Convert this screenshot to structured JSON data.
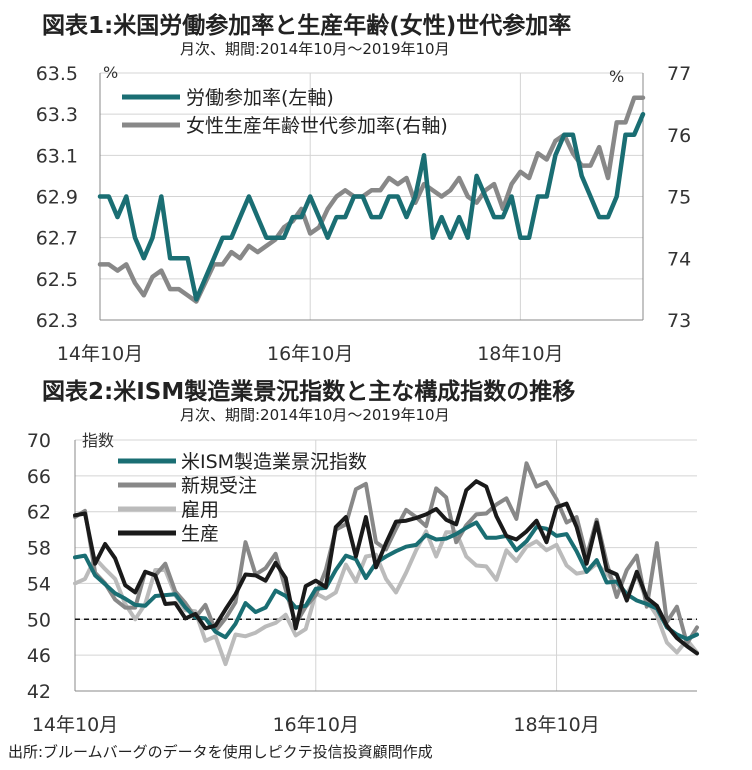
{
  "figure1": {
    "title": "図表1:米国労働参加率と生産年齢(女性)世代参加率",
    "subtitle": "月次、期間:2014年10月～2019年10月"
  },
  "figure2": {
    "title": "図表2:米ISM製造業景況指数と主な構成指数の推移",
    "subtitle": "月次、期間:2014年10月～2019年10月"
  },
  "source": "出所:ブルームバーグのデータを使用しピクテ投信投資顧問作成",
  "chart_data": [
    {
      "type": "line",
      "title": "図表1:米国労働参加率と生産年齢(女性)世代参加率",
      "subtitle": "月次、期間:2014年10月～2019年10月",
      "x_start": "2014-10",
      "x_end": "2019-10",
      "x_ticks": [
        "14年10月",
        "16年10月",
        "18年10月"
      ],
      "y_left": {
        "unit": "%",
        "range": [
          62.3,
          63.5
        ],
        "ticks": [
          "62.3",
          "62.5",
          "62.7",
          "62.9",
          "63.1",
          "63.3",
          "63.5"
        ]
      },
      "y_right": {
        "unit": "%",
        "range": [
          73,
          77
        ],
        "ticks": [
          "73",
          "74",
          "75",
          "76",
          "77"
        ]
      },
      "grid": true,
      "legend": "top-left",
      "series": [
        {
          "name": "労働参加率(左軸)",
          "axis": "left",
          "color": "#1a6e73",
          "values": [
            62.9,
            62.9,
            62.8,
            62.9,
            62.7,
            62.6,
            62.7,
            62.9,
            62.6,
            62.6,
            62.6,
            62.4,
            62.5,
            62.6,
            62.7,
            62.7,
            62.8,
            62.9,
            62.8,
            62.7,
            62.7,
            62.7,
            62.8,
            62.8,
            62.9,
            62.8,
            62.7,
            62.8,
            62.8,
            62.9,
            62.9,
            62.8,
            62.8,
            62.9,
            62.9,
            62.8,
            62.9,
            63.1,
            62.7,
            62.8,
            62.7,
            62.8,
            62.7,
            63.0,
            62.9,
            62.8,
            62.8,
            62.9,
            62.7,
            62.7,
            62.9,
            62.9,
            63.1,
            63.2,
            63.2,
            63.0,
            62.9,
            62.8,
            62.8,
            62.9,
            63.2,
            63.2,
            63.3
          ]
        },
        {
          "name": "女性生産年齢世代参加率(右軸)",
          "axis": "right",
          "color": "#888888",
          "values": [
            73.9,
            73.9,
            73.8,
            73.9,
            73.6,
            73.4,
            73.7,
            73.8,
            73.5,
            73.5,
            73.4,
            73.3,
            73.6,
            73.9,
            73.9,
            74.1,
            74.0,
            74.2,
            74.1,
            74.2,
            74.3,
            74.5,
            74.6,
            74.8,
            74.4,
            74.5,
            74.8,
            75.0,
            75.1,
            75.0,
            75.0,
            75.1,
            75.1,
            75.3,
            75.2,
            75.3,
            74.9,
            75.2,
            75.1,
            75.0,
            75.1,
            75.3,
            75.0,
            74.9,
            75.1,
            75.2,
            74.8,
            75.2,
            75.4,
            75.3,
            75.7,
            75.6,
            75.9,
            76.0,
            75.7,
            75.5,
            75.5,
            75.8,
            75.3,
            76.2,
            76.2,
            76.6,
            76.6
          ]
        }
      ]
    },
    {
      "type": "line",
      "title": "図表2:米ISM製造業景況指数と主な構成指数の推移",
      "subtitle": "月次、期間:2014年10月～2019年10月",
      "x_start": "2014-10",
      "x_end": "2019-10",
      "x_ticks": [
        "14年10月",
        "16年10月",
        "18年10月"
      ],
      "y": {
        "unit": "指数",
        "range": [
          42,
          70
        ],
        "ticks": [
          "42",
          "46",
          "50",
          "54",
          "58",
          "62",
          "66",
          "70"
        ]
      },
      "reference_line": 50,
      "grid": true,
      "legend": "top-left",
      "series": [
        {
          "name": "米ISM製造業景況指数",
          "color": "#1a6e73",
          "values": [
            56.9,
            57.1,
            54.9,
            53.9,
            52.9,
            52.3,
            51.6,
            51.5,
            52.6,
            52.7,
            52.8,
            51.3,
            50.2,
            50.1,
            48.6,
            48.0,
            49.5,
            51.8,
            50.8,
            51.3,
            53.2,
            52.6,
            51.3,
            51.5,
            53.4,
            53.5,
            55.5,
            57.1,
            56.7,
            54.6,
            56.3,
            57.0,
            57.6,
            58.1,
            58.3,
            59.4,
            58.9,
            59.0,
            59.5,
            60.2,
            60.8,
            59.1,
            59.1,
            59.3,
            57.7,
            58.7,
            60.3,
            60.1,
            59.3,
            59.5,
            57.6,
            55.3,
            56.6,
            54.1,
            54.2,
            52.8,
            52.1,
            51.7,
            51.2,
            49.1,
            48.3,
            47.8,
            48.3
          ]
        },
        {
          "name": "新規受注",
          "color": "#888888",
          "values": [
            61.4,
            62.1,
            55.2,
            54.0,
            52.2,
            51.3,
            51.3,
            55.3,
            54.9,
            56.2,
            53.1,
            51.8,
            50.2,
            51.6,
            48.7,
            50.1,
            51.9,
            58.6,
            55.0,
            55.7,
            57.3,
            53.3,
            49.5,
            51.4,
            52.7,
            55.5,
            60.0,
            60.6,
            64.5,
            65.1,
            58.6,
            57.8,
            60.1,
            62.2,
            61.4,
            60.4,
            64.6,
            63.6,
            58.6,
            60.5,
            61.7,
            61.8,
            62.8,
            63.5,
            61.2,
            67.4,
            64.8,
            65.3,
            63.4,
            60.8,
            61.4,
            57.0,
            61.1,
            56.3,
            52.5,
            55.5,
            57.1,
            51.4,
            58.5,
            49.7,
            51.4,
            47.3,
            49.1
          ]
        },
        {
          "name": "雇用",
          "color": "#bbbbbb",
          "values": [
            54.0,
            54.5,
            56.8,
            55.6,
            54.5,
            51.7,
            50.0,
            51.7,
            55.5,
            55.5,
            52.7,
            51.0,
            50.9,
            47.6,
            48.1,
            45.0,
            48.3,
            48.1,
            48.5,
            49.2,
            49.6,
            50.5,
            48.2,
            48.9,
            52.9,
            52.3,
            53.0,
            56.1,
            54.2,
            57.0,
            57.2,
            54.5,
            53.0,
            55.2,
            57.7,
            59.8,
            57.0,
            59.7,
            59.7,
            57.0,
            56.0,
            55.9,
            54.4,
            57.7,
            56.5,
            58.1,
            58.7,
            57.7,
            58.3,
            56.0,
            55.1,
            55.3,
            56.2,
            55.1,
            53.9,
            52.8,
            54.9,
            52.1,
            50.4,
            47.4,
            46.3,
            47.7,
            46.3
          ]
        },
        {
          "name": "生産",
          "color": "#1a1a1a",
          "values": [
            61.6,
            61.8,
            56.2,
            58.4,
            56.8,
            53.8,
            53.0,
            55.3,
            54.9,
            51.7,
            51.8,
            50.1,
            50.6,
            49.0,
            49.3,
            51.1,
            52.8,
            55.0,
            54.9,
            54.3,
            56.3,
            54.6,
            49.0,
            53.7,
            54.3,
            53.6,
            60.3,
            61.4,
            57.0,
            61.4,
            55.8,
            58.5,
            60.9,
            61.0,
            61.3,
            61.7,
            62.3,
            61.1,
            60.6,
            64.4,
            65.4,
            64.8,
            61.5,
            59.3,
            58.9,
            59.8,
            61.0,
            58.6,
            62.5,
            62.9,
            60.3,
            56.2,
            60.8,
            55.5,
            55.0,
            52.1,
            55.3,
            52.4,
            51.5,
            49.3,
            47.9,
            47.0,
            46.2
          ]
        }
      ]
    }
  ]
}
